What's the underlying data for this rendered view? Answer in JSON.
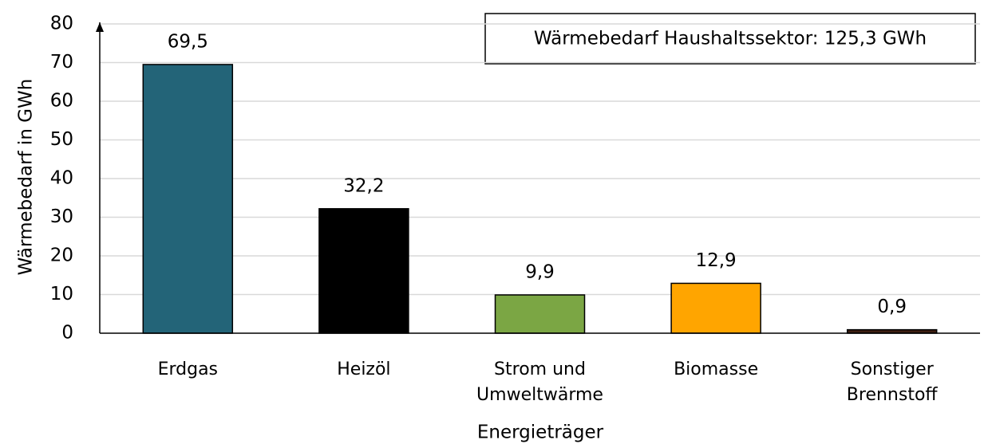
{
  "chart_data": {
    "type": "bar",
    "title": "Wärmebedarf Haushaltssektor: 125,3 GWh",
    "x_label": "Energieträger",
    "y_label": "Wärmebedarf in GWh",
    "categories": [
      "Erdgas",
      "Heizöl",
      "Strom und Umweltwärme",
      "Biomasse",
      "Sonstiger Brennstoff"
    ],
    "values": [
      69.5,
      32.2,
      9.9,
      12.9,
      0.9
    ],
    "value_labels": [
      "69,5",
      "32,2",
      "9,9",
      "12,9",
      "0,9"
    ],
    "colors": [
      "#236478",
      "#000000",
      "#7ba644",
      "#ffa500",
      "#3d1f12"
    ],
    "ylim": [
      0,
      80
    ],
    "yticks": [
      0,
      10,
      20,
      30,
      40,
      50,
      60,
      70,
      80
    ],
    "grid": true
  }
}
